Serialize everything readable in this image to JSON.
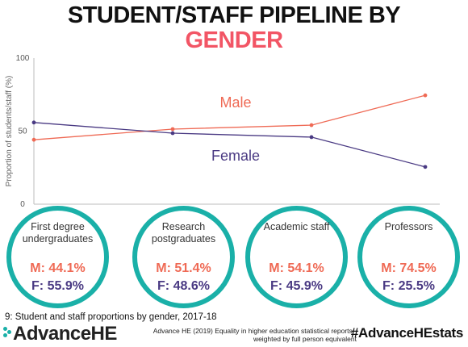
{
  "title": {
    "line1": "STUDENT/STAFF PIPELINE BY",
    "line2": "GENDER"
  },
  "colors": {
    "male": "#ef6a55",
    "female": "#4a3a83",
    "accent": "#f25565",
    "teal": "#1ab0a8",
    "axis": "#bdbdbd"
  },
  "chart_data": {
    "type": "line",
    "ylabel": "Proportion of students/staff (%)",
    "ylim": [
      0,
      100
    ],
    "yticks": [
      "0",
      "50",
      "100"
    ],
    "categories": [
      "First degree undergraduates",
      "Research postgraduates",
      "Academic staff",
      "Professors"
    ],
    "series": [
      {
        "name": "Male",
        "values": [
          44.1,
          51.4,
          54.1,
          74.5
        ]
      },
      {
        "name": "Female",
        "values": [
          55.9,
          48.6,
          45.9,
          25.5
        ]
      }
    ],
    "grid": false,
    "legend": "inline labels"
  },
  "circles": [
    {
      "label": "First degree undergraduates",
      "m": "M: 44.1%",
      "f": "F: 55.9%"
    },
    {
      "label": "Research postgraduates",
      "m": "M: 51.4%",
      "f": "F: 48.6%"
    },
    {
      "label": "Academic staff",
      "m": "M: 54.1%",
      "f": "F: 45.9%"
    },
    {
      "label": "Professors",
      "m": "M: 74.5%",
      "f": "F: 25.5%"
    }
  ],
  "caption": "9: Student and staff proportions by gender, 2017-18",
  "footer": {
    "logo": "AdvanceHE",
    "source_line1": "Advance HE (2019) Equality in higher education statistical reports -",
    "source_line2": "weighted by full person equivalent",
    "hashtag": "#AdvanceHEstats"
  }
}
